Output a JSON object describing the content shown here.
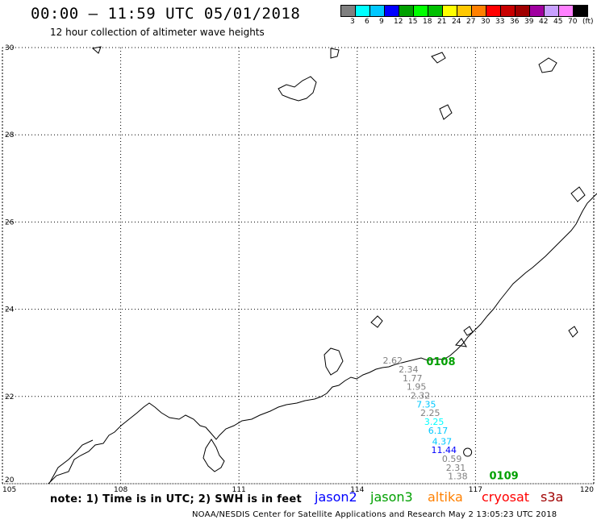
{
  "header": {
    "title": "00:00 – 11:59 UTC 05/01/2018",
    "subtitle": "12 hour collection of altimeter wave heights"
  },
  "legend": {
    "colors": [
      "#808080",
      "#00ffff",
      "#00c8ff",
      "#0000ff",
      "#00a000",
      "#00ff00",
      "#00c000",
      "#ffff00",
      "#ffc800",
      "#ff8000",
      "#ff0000",
      "#c80000",
      "#a00000",
      "#a000a0",
      "#c8a0ff",
      "#ff80ff",
      "#000000"
    ],
    "labels": [
      "3",
      "6",
      "9",
      "12",
      "15",
      "18",
      "21",
      "24",
      "27",
      "30",
      "33",
      "36",
      "39",
      "42",
      "45",
      "70",
      "(ft)"
    ]
  },
  "axes": {
    "y_ticks": [
      "30",
      "28",
      "26",
      "24",
      "22",
      "20"
    ],
    "x_ticks": [
      "105",
      "108",
      "111",
      "114",
      "117",
      "120"
    ],
    "lon_range": [
      105,
      120
    ],
    "lat_range": [
      20,
      30
    ]
  },
  "observations": [
    {
      "text": "2.62",
      "lon": 114.9,
      "lat": 22.75,
      "color": "#808080"
    },
    {
      "text": "2.34",
      "lon": 115.3,
      "lat": 22.55,
      "color": "#808080"
    },
    {
      "text": "1.77",
      "lon": 115.4,
      "lat": 22.35,
      "color": "#808080"
    },
    {
      "text": "1.95",
      "lon": 115.5,
      "lat": 22.15,
      "color": "#808080"
    },
    {
      "text": "2.32",
      "lon": 115.6,
      "lat": 21.95,
      "color": "#808080"
    },
    {
      "text": "7.35",
      "lon": 115.75,
      "lat": 21.75,
      "color": "#00c8ff"
    },
    {
      "text": "2.25",
      "lon": 115.85,
      "lat": 21.55,
      "color": "#808080"
    },
    {
      "text": "3.25",
      "lon": 115.95,
      "lat": 21.35,
      "color": "#00ffff"
    },
    {
      "text": "6.17",
      "lon": 116.05,
      "lat": 21.15,
      "color": "#00c8ff"
    },
    {
      "text": "4.37",
      "lon": 116.15,
      "lat": 20.9,
      "color": "#00c8ff"
    },
    {
      "text": "11.44",
      "lon": 116.2,
      "lat": 20.7,
      "color": "#0000ff"
    },
    {
      "text": "0.59",
      "lon": 116.4,
      "lat": 20.5,
      "color": "#808080"
    },
    {
      "text": "2.31",
      "lon": 116.5,
      "lat": 20.3,
      "color": "#808080"
    },
    {
      "text": "1.38",
      "lon": 116.55,
      "lat": 20.1,
      "color": "#808080"
    }
  ],
  "pass_labels": [
    {
      "text": "0108",
      "lon": 115.75,
      "lat": 22.72,
      "color": "#00a000"
    },
    {
      "text": "0109",
      "lon": 117.35,
      "lat": 20.1,
      "color": "#00a000"
    }
  ],
  "footer": {
    "note": "note: 1) Time is in UTC; 2) SWH is in feet",
    "satellites": [
      {
        "name": "jason2",
        "color": "#0000ff"
      },
      {
        "name": "jason3",
        "color": "#00a000"
      },
      {
        "name": "altika",
        "color": "#ff8000"
      },
      {
        "name": "cryosat",
        "color": "#ff0000"
      },
      {
        "name": "s3a",
        "color": "#a00000"
      }
    ],
    "credit": "NOAA/NESDIS Center for Satellite Applications and Research    May  2 13:05:23 UTC 2018"
  }
}
